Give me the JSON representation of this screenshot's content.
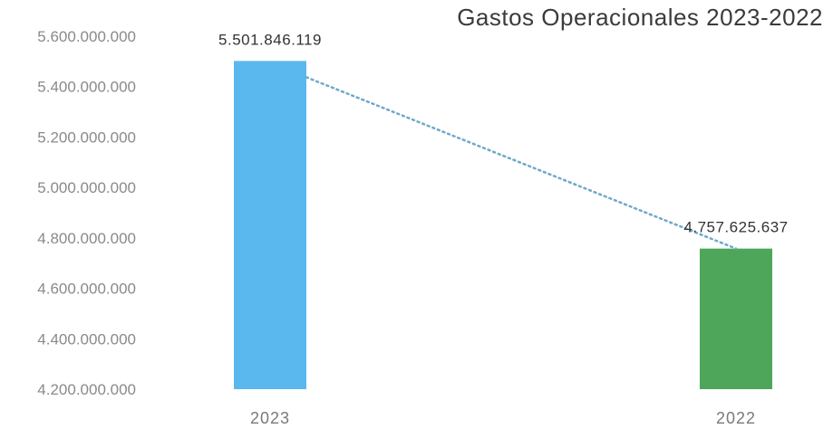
{
  "chart_data": {
    "type": "bar",
    "title": "Gastos Operacionales 2023-2022",
    "xlabel": "",
    "ylabel": "",
    "categories": [
      "2023",
      "2022"
    ],
    "values": [
      5501846119,
      4757625637
    ],
    "value_labels": [
      "5.501.846.119",
      "4.757.625.637"
    ],
    "ylim": [
      4200000000,
      5600000000
    ],
    "yticks": [
      4200000000,
      4400000000,
      4600000000,
      4800000000,
      5000000000,
      5200000000,
      5400000000,
      5600000000
    ],
    "ytick_labels": [
      "4.200.000.000",
      "4.400.000.000",
      "4.600.000.000",
      "4.800.000.000",
      "5.000.000.000",
      "5.200.000.000",
      "5.400.000.000",
      "5.600.000.000"
    ],
    "bar_colors": [
      "#5bb8ee",
      "#4ea65a"
    ],
    "trendline": {
      "style": "dotted",
      "color": "#6fa9c9"
    },
    "grid": false,
    "legend": "none"
  }
}
